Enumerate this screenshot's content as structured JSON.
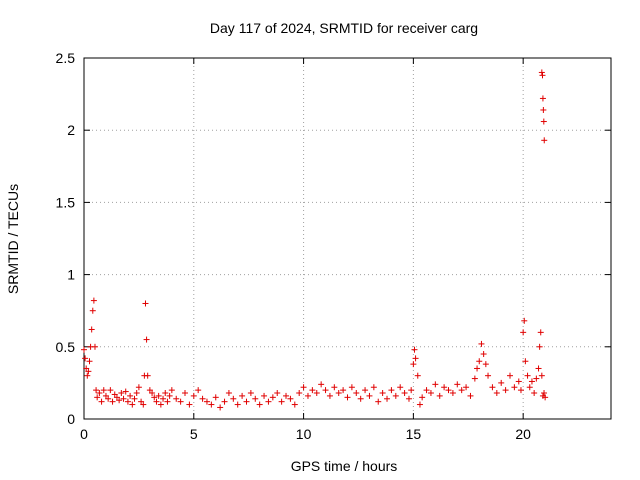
{
  "chart_data": {
    "type": "scatter",
    "title": "Day 117 of 2024, SRMTID for receiver carg",
    "xlabel": "GPS time / hours",
    "ylabel": "SRMTID / TECUs",
    "xlim": [
      0,
      24
    ],
    "ylim": [
      0,
      2.5
    ],
    "xticks": [
      0,
      5,
      10,
      15,
      20
    ],
    "xtick_labels": [
      "0",
      "5",
      "10",
      "15",
      "20"
    ],
    "yticks": [
      0,
      0.5,
      1,
      1.5,
      2,
      2.5
    ],
    "ytick_labels": [
      "0",
      "0.5",
      "1",
      "1.5",
      "2",
      "2.5"
    ],
    "grid": true,
    "marker": "+",
    "color": "#e00000",
    "series": [
      {
        "name": "SRMTID",
        "x": [
          0.0,
          0.05,
          0.1,
          0.15,
          0.2,
          0.25,
          0.3,
          0.35,
          0.4,
          0.45,
          0.5,
          0.55,
          0.6,
          0.7,
          0.8,
          0.9,
          1.0,
          1.1,
          1.2,
          1.3,
          1.4,
          1.5,
          1.6,
          1.7,
          1.8,
          1.9,
          2.0,
          2.1,
          2.2,
          2.3,
          2.4,
          2.5,
          2.6,
          2.7,
          2.75,
          2.8,
          2.85,
          2.9,
          3.0,
          3.1,
          3.2,
          3.3,
          3.4,
          3.5,
          3.6,
          3.7,
          3.8,
          3.9,
          4.0,
          4.2,
          4.4,
          4.6,
          4.8,
          5.0,
          5.2,
          5.4,
          5.6,
          5.8,
          6.0,
          6.2,
          6.4,
          6.6,
          6.8,
          7.0,
          7.2,
          7.4,
          7.6,
          7.8,
          8.0,
          8.2,
          8.4,
          8.6,
          8.8,
          9.0,
          9.2,
          9.4,
          9.6,
          9.8,
          10.0,
          10.2,
          10.4,
          10.6,
          10.8,
          11.0,
          11.2,
          11.4,
          11.6,
          11.8,
          12.0,
          12.2,
          12.4,
          12.6,
          12.8,
          13.0,
          13.2,
          13.4,
          13.6,
          13.8,
          14.0,
          14.2,
          14.4,
          14.6,
          14.8,
          14.9,
          15.0,
          15.05,
          15.1,
          15.2,
          15.3,
          15.4,
          15.6,
          15.8,
          16.0,
          16.2,
          16.4,
          16.6,
          16.8,
          17.0,
          17.2,
          17.4,
          17.6,
          17.8,
          17.9,
          18.0,
          18.1,
          18.2,
          18.3,
          18.4,
          18.6,
          18.8,
          19.0,
          19.2,
          19.4,
          19.6,
          19.8,
          19.9,
          20.0,
          20.05,
          20.1,
          20.2,
          20.3,
          20.4,
          20.5,
          20.6,
          20.7,
          20.75,
          20.8,
          20.85,
          20.9,
          20.95,
          21.0,
          20.85,
          20.88,
          20.9,
          20.92,
          20.94,
          20.96
        ],
        "y": [
          0.48,
          0.42,
          0.35,
          0.3,
          0.33,
          0.4,
          0.5,
          0.62,
          0.75,
          0.82,
          0.5,
          0.2,
          0.15,
          0.18,
          0.12,
          0.2,
          0.16,
          0.14,
          0.2,
          0.12,
          0.17,
          0.15,
          0.13,
          0.18,
          0.14,
          0.19,
          0.12,
          0.16,
          0.1,
          0.14,
          0.18,
          0.22,
          0.12,
          0.1,
          0.3,
          0.8,
          0.55,
          0.3,
          0.2,
          0.18,
          0.15,
          0.12,
          0.16,
          0.1,
          0.14,
          0.18,
          0.12,
          0.16,
          0.2,
          0.14,
          0.12,
          0.18,
          0.1,
          0.16,
          0.2,
          0.14,
          0.12,
          0.1,
          0.15,
          0.08,
          0.12,
          0.18,
          0.14,
          0.1,
          0.16,
          0.12,
          0.18,
          0.14,
          0.1,
          0.16,
          0.12,
          0.15,
          0.18,
          0.12,
          0.16,
          0.14,
          0.1,
          0.18,
          0.22,
          0.16,
          0.2,
          0.18,
          0.24,
          0.2,
          0.16,
          0.22,
          0.18,
          0.2,
          0.15,
          0.22,
          0.18,
          0.14,
          0.2,
          0.16,
          0.22,
          0.12,
          0.18,
          0.14,
          0.2,
          0.16,
          0.22,
          0.18,
          0.14,
          0.2,
          0.38,
          0.48,
          0.42,
          0.3,
          0.1,
          0.15,
          0.2,
          0.18,
          0.24,
          0.16,
          0.22,
          0.2,
          0.18,
          0.24,
          0.2,
          0.22,
          0.16,
          0.28,
          0.35,
          0.4,
          0.52,
          0.45,
          0.38,
          0.3,
          0.22,
          0.18,
          0.25,
          0.2,
          0.3,
          0.22,
          0.26,
          0.2,
          0.6,
          0.68,
          0.4,
          0.3,
          0.22,
          0.26,
          0.18,
          0.28,
          0.35,
          0.5,
          0.6,
          0.3,
          0.16,
          0.18,
          0.15,
          2.4,
          2.38,
          2.22,
          2.14,
          2.06,
          1.93
        ]
      }
    ]
  }
}
